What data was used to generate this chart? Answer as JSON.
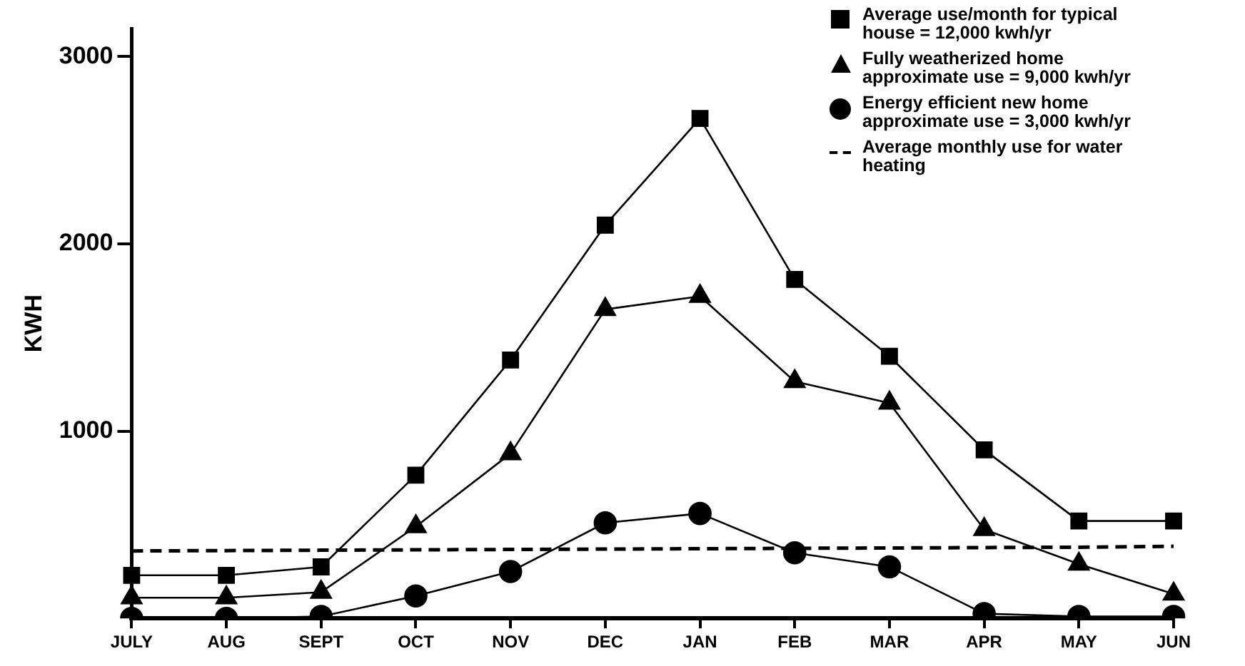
{
  "chart_data": {
    "type": "line",
    "ylabel": "KWH",
    "categories": [
      "JULY",
      "AUG",
      "SEPT",
      "OCT",
      "NOV",
      "DEC",
      "JAN",
      "FEB",
      "MAR",
      "APR",
      "MAY",
      "JUN"
    ],
    "series": [
      {
        "name": "Average use/month for typical house = 12,000 kwh/yr",
        "color": "#000000",
        "marker": "square",
        "values": [
          230,
          230,
          275,
          765,
          1380,
          2100,
          2670,
          1810,
          1400,
          900,
          520,
          520
        ]
      },
      {
        "name": "Fully weatherized home approximate use = 9,000 kwh/yr",
        "color": "#000000",
        "marker": "triangle",
        "values": [
          110,
          110,
          140,
          490,
          880,
          1650,
          1720,
          1265,
          1150,
          475,
          290,
          130
        ]
      },
      {
        "name": "Energy efficient new home approximate use = 3,000 kwh/yr",
        "color": "#000000",
        "marker": "circle",
        "values": [
          0,
          0,
          10,
          120,
          250,
          510,
          560,
          350,
          275,
          25,
          10,
          10
        ]
      },
      {
        "name": "Average monthly use for water heating",
        "color": "#000000",
        "marker": "none",
        "line_style": "dashed",
        "values": [
          360,
          362,
          364,
          366,
          368,
          370,
          372,
          374,
          376,
          378,
          380,
          385
        ]
      }
    ],
    "ylim": [
      0,
      3150
    ],
    "yticks": [
      1000,
      2000,
      3000
    ],
    "grid": false,
    "legend": "top right"
  }
}
